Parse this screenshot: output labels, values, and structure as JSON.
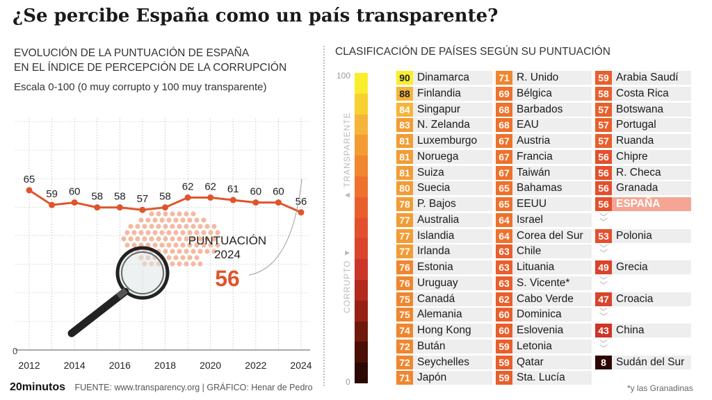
{
  "title": "¿Se percibe España como un país transparente?",
  "left": {
    "subtitle_line1": "EVOLUCIÓN DE LA PUNTUACIÓN DE ESPAÑA",
    "subtitle_line2": "EN EL ÍNDICE DE PERCEPCIÓN DE LA CORRUPCIÓN",
    "scale_note": "Escala 0-100 (0 muy corrupto y 100 muy transparente)"
  },
  "right": {
    "subtitle": "CLASIFICACIÓN DE PAÍSES SEGÚN SU PUNTUACIÓN",
    "scale_top": "100",
    "scale_bottom": "0",
    "label_top": "TRANSPARENTE",
    "label_bottom": "CORRUPTO"
  },
  "footer": {
    "brand": "20minutos",
    "source": "FUENTE: www.transparency.org  |  GRÁFICO: Henar de Pedro",
    "footnote": "*y las Granadinas"
  },
  "colors": {
    "line": "#e0542b",
    "highlight": "#f4a594",
    "scale": [
      "#f9ee2e",
      "#f7d130",
      "#f6b43a",
      "#f39c34",
      "#f0862e",
      "#ee712c",
      "#e85f2c",
      "#e3502e",
      "#da432c",
      "#cc3629",
      "#b32a1f",
      "#962114",
      "#6f180c",
      "#4a0f05",
      "#2b0803"
    ]
  },
  "chart_data": [
    {
      "type": "line",
      "title": "EVOLUCIÓN DE LA PUNTUACIÓN DE ESPAÑA EN EL ÍNDICE DE PERCEPCIÓN DE LA CORRUPCIÓN",
      "x": [
        2012,
        2013,
        2014,
        2015,
        2016,
        2017,
        2018,
        2019,
        2020,
        2021,
        2022,
        2023,
        2024
      ],
      "values": [
        65,
        59,
        60,
        58,
        58,
        57,
        58,
        62,
        62,
        61,
        60,
        60,
        56
      ],
      "xtick_labels": [
        "2012",
        "2014",
        "2016",
        "2018",
        "2020",
        "2022",
        "2024"
      ],
      "ytick_labels": [
        "0"
      ],
      "ylim": [
        0,
        100
      ],
      "grid": true,
      "annotation": {
        "line1": "PUNTUACIÓN",
        "line2": "2024",
        "value": "56"
      }
    },
    {
      "type": "table",
      "title": "CLASIFICACIÓN DE PAÍSES SEGÚN SU PUNTUACIÓN",
      "columns": [
        [
          {
            "score": 90,
            "country": "Dinamarca"
          },
          {
            "score": 88,
            "country": "Finlandia"
          },
          {
            "score": 84,
            "country": "Singapur"
          },
          {
            "score": 83,
            "country": "N. Zelanda"
          },
          {
            "score": 81,
            "country": "Luxemburgo"
          },
          {
            "score": 81,
            "country": "Noruega"
          },
          {
            "score": 81,
            "country": "Suiza"
          },
          {
            "score": 80,
            "country": "Suecia"
          },
          {
            "score": 78,
            "country": "P. Bajos"
          },
          {
            "score": 77,
            "country": "Australia"
          },
          {
            "score": 77,
            "country": "Islandia"
          },
          {
            "score": 77,
            "country": "Irlanda"
          },
          {
            "score": 76,
            "country": "Estonia"
          },
          {
            "score": 76,
            "country": "Uruguay"
          },
          {
            "score": 75,
            "country": "Canadá"
          },
          {
            "score": 75,
            "country": "Alemania"
          },
          {
            "score": 74,
            "country": "Hong Kong"
          },
          {
            "score": 72,
            "country": "Bután"
          },
          {
            "score": 72,
            "country": "Seychelles"
          },
          {
            "score": 71,
            "country": "Japón"
          }
        ],
        [
          {
            "score": 71,
            "country": "R. Unido"
          },
          {
            "score": 69,
            "country": "Bélgica"
          },
          {
            "score": 68,
            "country": "Barbados"
          },
          {
            "score": 68,
            "country": "EAU"
          },
          {
            "score": 67,
            "country": "Austria"
          },
          {
            "score": 67,
            "country": "Francia"
          },
          {
            "score": 67,
            "country": "Taiwán"
          },
          {
            "score": 65,
            "country": "Bahamas"
          },
          {
            "score": 65,
            "country": "EEUU"
          },
          {
            "score": 64,
            "country": "Israel"
          },
          {
            "score": 64,
            "country": "Corea del Sur"
          },
          {
            "score": 63,
            "country": "Chile"
          },
          {
            "score": 63,
            "country": "Lituania"
          },
          {
            "score": 63,
            "country": "S. Vicente*"
          },
          {
            "score": 62,
            "country": "Cabo Verde"
          },
          {
            "score": 60,
            "country": "Dominica"
          },
          {
            "score": 60,
            "country": "Eslovenia"
          },
          {
            "score": 59,
            "country": "Letonia"
          },
          {
            "score": 59,
            "country": "Qatar"
          },
          {
            "score": 59,
            "country": "Sta. Lucía"
          }
        ],
        [
          {
            "score": 59,
            "country": "Arabia Saudí"
          },
          {
            "score": 58,
            "country": "Costa Rica"
          },
          {
            "score": 57,
            "country": "Botswana"
          },
          {
            "score": 57,
            "country": "Portugal"
          },
          {
            "score": 57,
            "country": "Ruanda"
          },
          {
            "score": 56,
            "country": "Chipre"
          },
          {
            "score": 56,
            "country": "R. Checa"
          },
          {
            "score": 56,
            "country": "Granada"
          },
          {
            "score": 56,
            "country": "ESPAÑA",
            "highlight": true
          },
          {
            "gap": true
          },
          {
            "score": 53,
            "country": "Polonia"
          },
          {
            "gap": true
          },
          {
            "score": 49,
            "country": "Grecia"
          },
          {
            "gap": true
          },
          {
            "score": 47,
            "country": "Croacia"
          },
          {
            "gap": true
          },
          {
            "score": 43,
            "country": "China"
          },
          {
            "gap": true
          },
          {
            "score": 8,
            "country": "Sudán del Sur"
          }
        ]
      ]
    }
  ]
}
